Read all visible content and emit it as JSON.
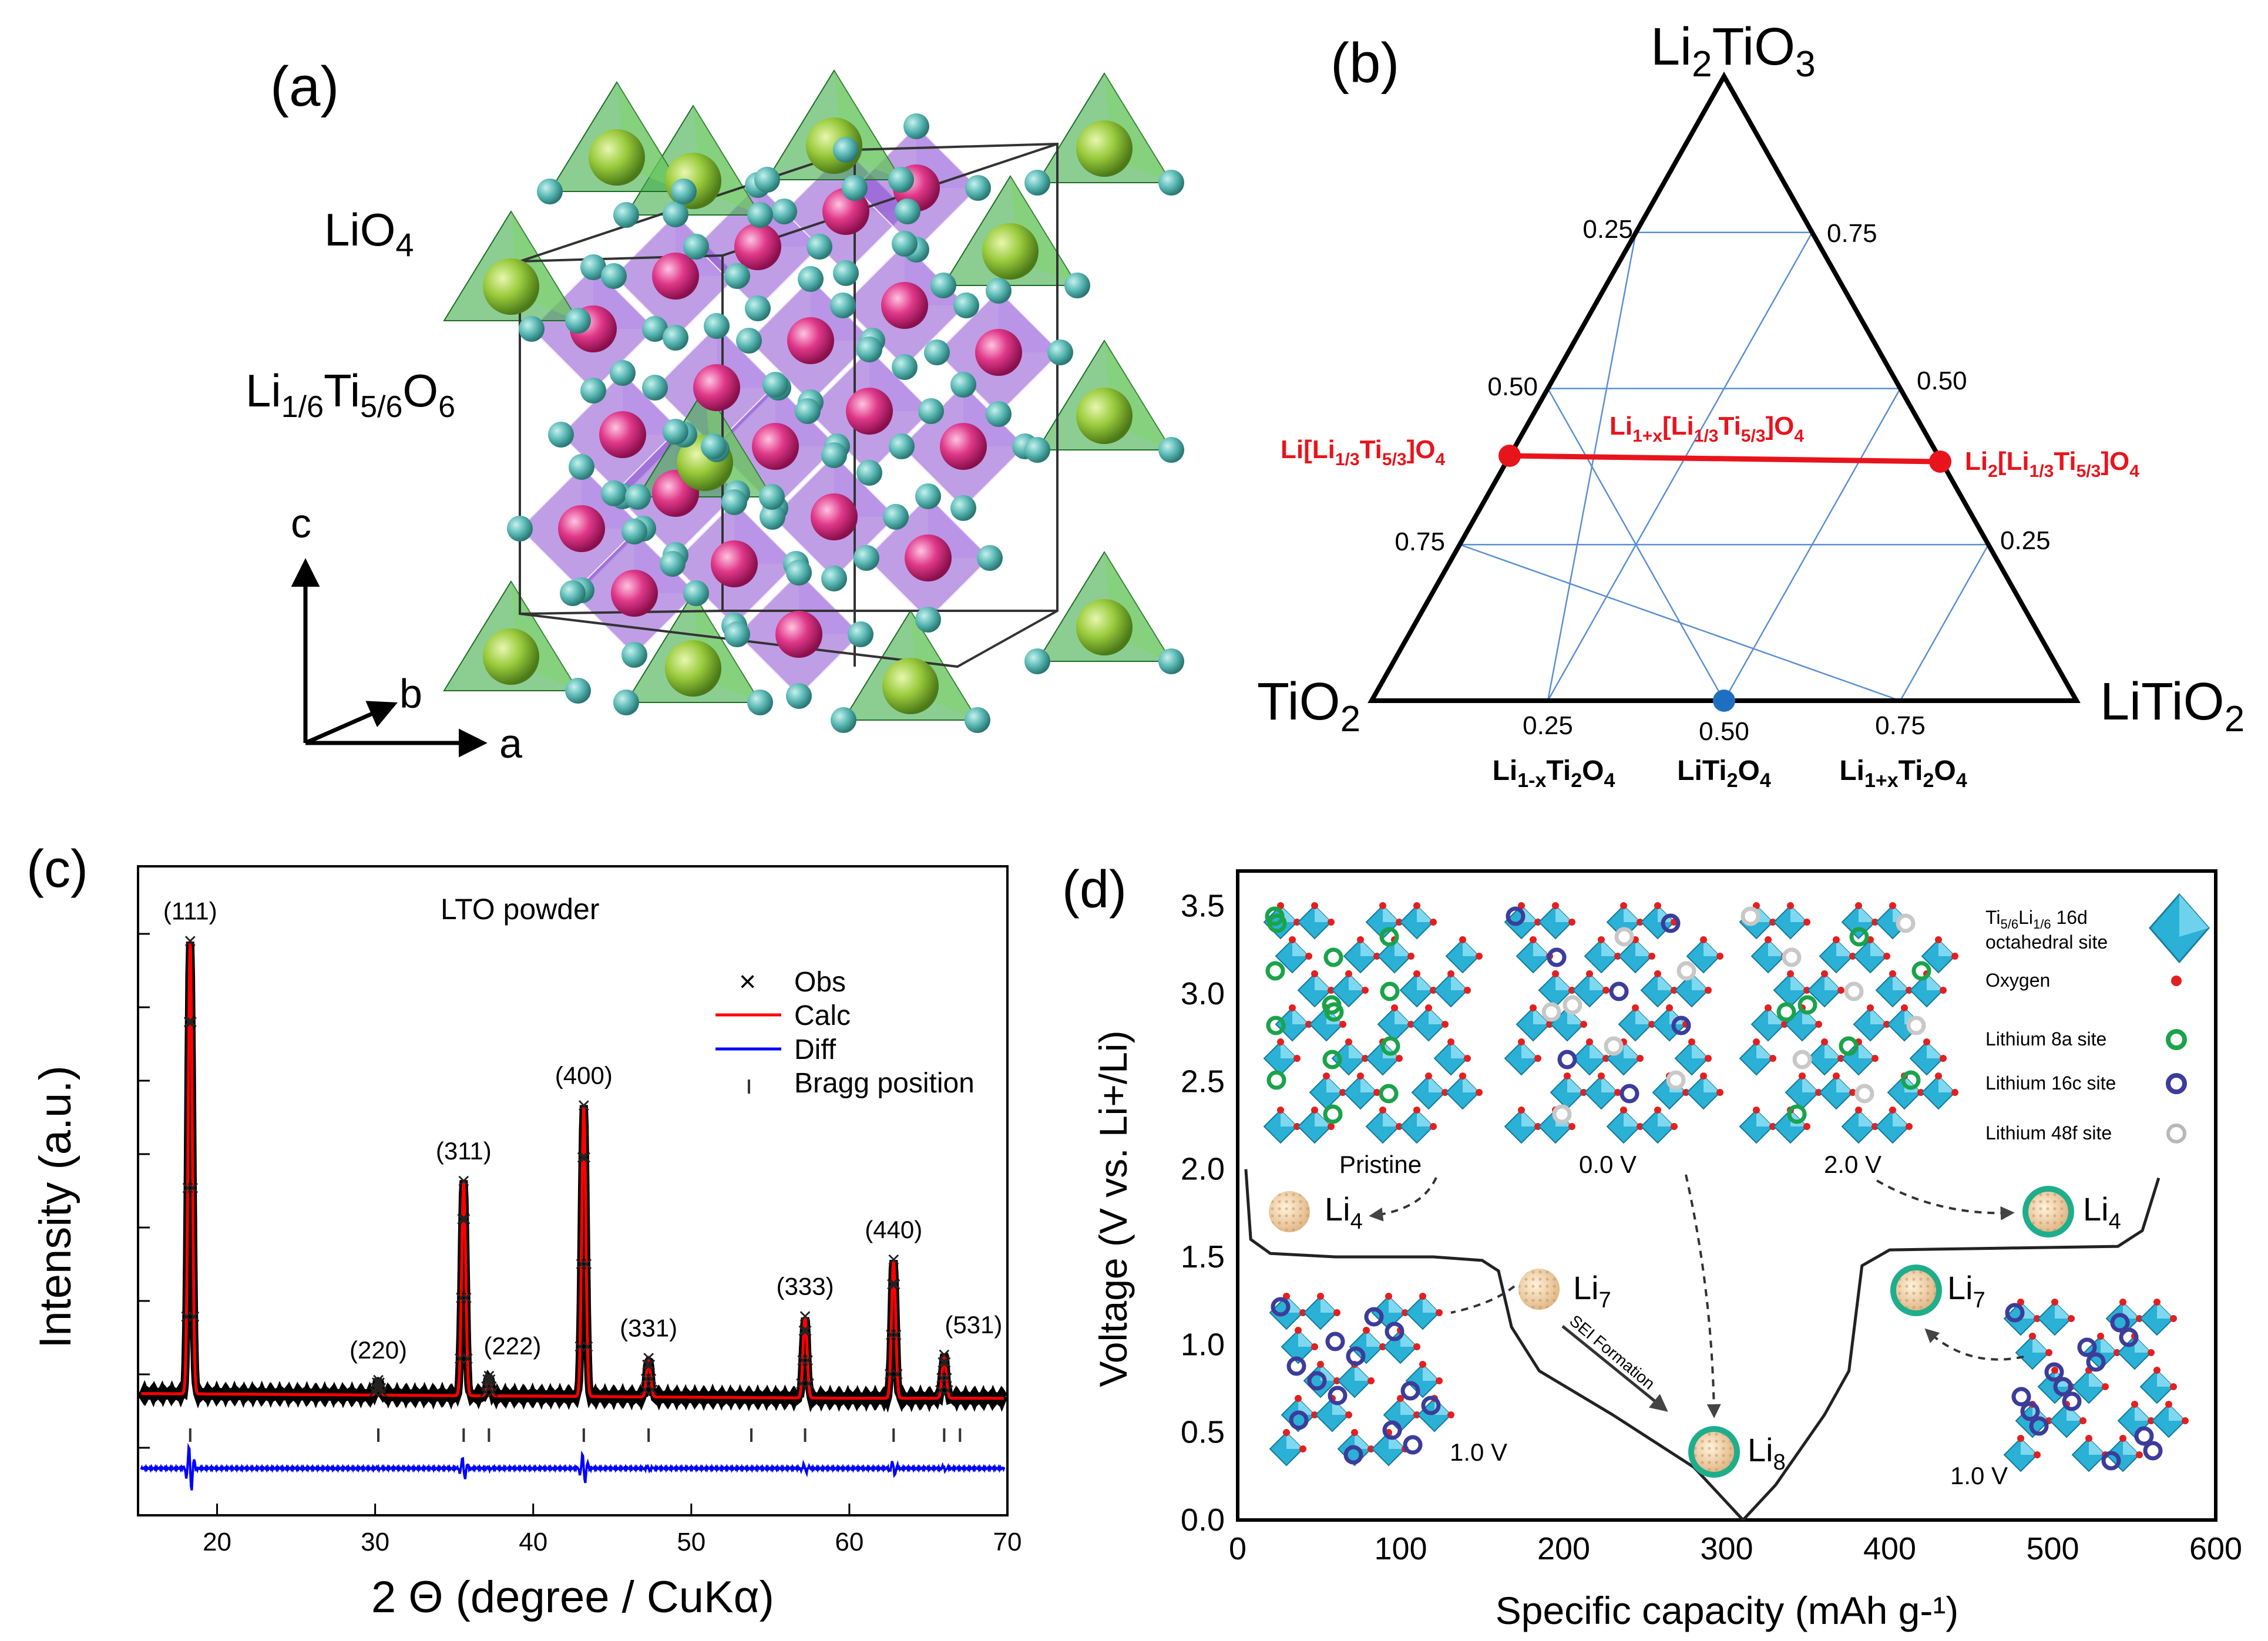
{
  "panels": {
    "a": {
      "label": "(a)",
      "species_tetra": "LiO",
      "species_tetra_sub": "4",
      "species_octa": [
        "Li",
        "1/6",
        "Ti",
        "5/6",
        "O",
        "6"
      ],
      "axes": {
        "c": "c",
        "b": "b",
        "a": "a"
      }
    },
    "b": {
      "label": "(b)",
      "top_vertex": [
        "Li",
        "2",
        "TiO",
        "3"
      ],
      "left_vertex": [
        "TiO",
        "2"
      ],
      "right_vertex": [
        "LiTiO",
        "2"
      ],
      "left_edge_ticks": [
        "0.25",
        "0.50",
        "0.75"
      ],
      "right_edge_ticks": [
        "0.75",
        "0.50",
        "0.25"
      ],
      "bottom_ticks": [
        "0.25",
        "0.50",
        "0.75"
      ],
      "bottom_labels": {
        "left": [
          "Li",
          "1-x",
          "Ti",
          "2",
          "O",
          "4"
        ],
        "mid": [
          "LiTi",
          "2",
          "O",
          "4"
        ],
        "right": [
          "Li",
          "1+x",
          "Ti",
          "2",
          "O",
          "4"
        ]
      },
      "red_line": {
        "left": [
          "Li[Li",
          "1/3",
          "Ti",
          "5/3",
          "]O",
          "4"
        ],
        "mid": [
          "Li",
          "1+x",
          "[Li",
          "1/3",
          "Ti",
          "5/3",
          "]O",
          "4"
        ],
        "right": [
          "Li",
          "2",
          "[Li",
          "1/3",
          "Ti",
          "5/3",
          "]O",
          "4"
        ]
      },
      "colors": {
        "red": "#e8141c",
        "grid": "#5b8fd1",
        "blue_point": "#1f6fc0"
      }
    },
    "c": {
      "label": "(c)",
      "chart_data": {
        "type": "line",
        "title": "LTO powder",
        "xlabel": "2 Θ (degree / CuKα)",
        "ylabel": "Intensity (a.u.)",
        "xlim": [
          15,
          70
        ],
        "xticks": [
          "20",
          "30",
          "40",
          "50",
          "60",
          "70"
        ],
        "legend": [
          "Obs",
          "Calc",
          "Diff",
          "Bragg position"
        ],
        "peaks": [
          {
            "hkl": "(111)",
            "x": 18.3,
            "height": 0.95
          },
          {
            "hkl": "(220)",
            "x": 30.2,
            "height": 0.03
          },
          {
            "hkl": "(311)",
            "x": 35.6,
            "height": 0.45
          },
          {
            "hkl": "(222)",
            "x": 37.2,
            "height": 0.04
          },
          {
            "hkl": "(400)",
            "x": 43.2,
            "height": 0.61
          },
          {
            "hkl": "(331)",
            "x": 47.3,
            "height": 0.08
          },
          {
            "hkl": "(333)",
            "x": 57.2,
            "height": 0.17
          },
          {
            "hkl": "(440)",
            "x": 62.8,
            "height": 0.29
          },
          {
            "hkl": "(531)",
            "x": 66.0,
            "height": 0.09
          }
        ],
        "bragg_positions": [
          18.3,
          30.2,
          35.6,
          37.2,
          43.2,
          47.3,
          53.8,
          57.2,
          62.8,
          66.0,
          67.0
        ],
        "colors": {
          "calc": "#ff0000",
          "diff": "#0000ff",
          "obs": "#000000"
        }
      }
    },
    "d": {
      "label": "(d)",
      "chart_data": {
        "type": "line",
        "xlabel": "Specific capacity (mAh g-¹)",
        "ylabel": "Voltage (V vs. Li+/Li)",
        "xlim": [
          0,
          600
        ],
        "ylim": [
          0,
          3.7
        ],
        "xticks": [
          "0",
          "100",
          "200",
          "300",
          "400",
          "500",
          "600"
        ],
        "yticks": [
          "0.0",
          "0.5",
          "1.0",
          "1.5",
          "2.0",
          "2.5",
          "3.0",
          "3.5"
        ],
        "curve_discharge": [
          [
            5,
            2.0
          ],
          [
            8,
            1.6
          ],
          [
            20,
            1.52
          ],
          [
            60,
            1.5
          ],
          [
            120,
            1.5
          ],
          [
            150,
            1.48
          ],
          [
            160,
            1.42
          ],
          [
            168,
            1.1
          ],
          [
            185,
            0.85
          ],
          [
            230,
            0.6
          ],
          [
            280,
            0.3
          ],
          [
            310,
            0.0
          ]
        ],
        "curve_charge": [
          [
            310,
            0.0
          ],
          [
            330,
            0.2
          ],
          [
            360,
            0.6
          ],
          [
            375,
            0.85
          ],
          [
            383,
            1.45
          ],
          [
            400,
            1.54
          ],
          [
            470,
            1.55
          ],
          [
            540,
            1.56
          ],
          [
            555,
            1.65
          ],
          [
            565,
            1.95
          ]
        ],
        "structures": [
          "Pristine",
          "0.0 V",
          "2.0 V"
        ],
        "side_structures": [
          "1.0 V",
          "1.0 V"
        ],
        "li_labels": {
          "li4_left": [
            "Li",
            "4"
          ],
          "li7_left": [
            "Li",
            "7"
          ],
          "li8": [
            "Li",
            "8"
          ],
          "li7_right": [
            "Li",
            "7"
          ],
          "li4_right": [
            "Li",
            "4"
          ]
        },
        "sei": "SEI Formation",
        "legend": {
          "octa": [
            "Ti",
            "5/6",
            "Li",
            "1/6",
            " 16d"
          ],
          "octa2": "octahedral site",
          "oxygen": "Oxygen",
          "li8a": "Lithium 8a site",
          "li16c": "Lithium 16c site",
          "li48f": "Lithium 48f site"
        },
        "colors": {
          "octa": "#2bb0d6",
          "oxygen": "#e32020",
          "li8a": "#1aa34a",
          "li16c": "#3c3c9a",
          "li48f": "#c8c8c8",
          "ring": "#1fae8c"
        }
      }
    }
  }
}
